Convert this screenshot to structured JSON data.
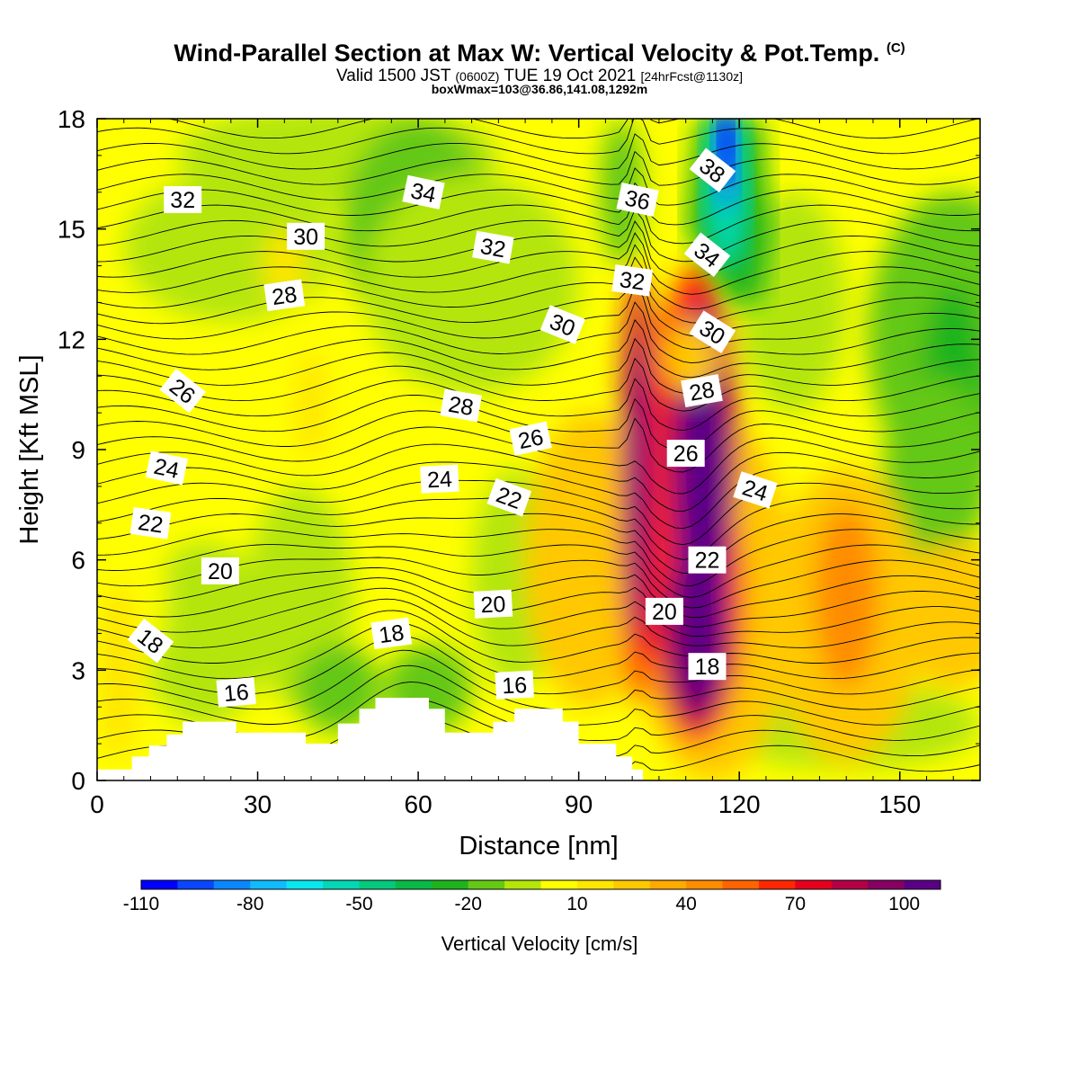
{
  "chart_data": {
    "type": "heatmap",
    "title": "Wind-Parallel Section at Max W: Vertical Velocity & Pot.Temp.",
    "title_mark": "(C)",
    "subtitle_parts": {
      "valid": "Valid 1500 JST",
      "utc": "(0600Z)",
      "date": "TUE 19 Oct 2021",
      "forecast": "[24hrFcst@1130z]"
    },
    "subtitle2": "boxWmax=103@36.86,141.08,1292m",
    "xlabel": "Distance [nm]",
    "ylabel": "Height [Kft MSL]",
    "xlim": [
      0,
      165
    ],
    "ylim": [
      0,
      18
    ],
    "xticks": [
      0,
      30,
      60,
      90,
      120,
      150
    ],
    "yticks": [
      0,
      3,
      6,
      9,
      12,
      15,
      18
    ],
    "colorbar": {
      "label": "Vertical Velocity [cm/s]",
      "tick_labels": [
        -110,
        -80,
        -50,
        -20,
        10,
        40,
        70,
        100
      ],
      "levels_from": -110,
      "levels_step": 10,
      "colors": [
        "#0000ff",
        "#0a46ff",
        "#0a87ff",
        "#10bcff",
        "#0ae6f0",
        "#05d7b4",
        "#05c87d",
        "#0ab946",
        "#1eb41e",
        "#64c814",
        "#b4e60a",
        "#ffff00",
        "#ffe600",
        "#ffc800",
        "#ffaa00",
        "#ff8c00",
        "#ff6400",
        "#ff2800",
        "#e6001e",
        "#b40046",
        "#870064",
        "#5a0087"
      ]
    },
    "theta_contours": {
      "levels": [
        16,
        18,
        20,
        22,
        24,
        26,
        28,
        30,
        32,
        34,
        36,
        38
      ],
      "labels": [
        {
          "text": "32",
          "x": 16,
          "y": 15.8,
          "angle": 0
        },
        {
          "text": "30",
          "x": 39,
          "y": 14.8,
          "angle": 0
        },
        {
          "text": "28",
          "x": 35,
          "y": 13.2,
          "angle": -8
        },
        {
          "text": "26",
          "x": 16,
          "y": 10.6,
          "angle": 38
        },
        {
          "text": "24",
          "x": 13,
          "y": 8.5,
          "angle": 12
        },
        {
          "text": "22",
          "x": 10,
          "y": 7.0,
          "angle": 8
        },
        {
          "text": "20",
          "x": 23,
          "y": 5.7,
          "angle": 0
        },
        {
          "text": "18",
          "x": 10,
          "y": 3.8,
          "angle": 38
        },
        {
          "text": "16",
          "x": 26,
          "y": 2.4,
          "angle": -5
        },
        {
          "text": "34",
          "x": 61,
          "y": 16.0,
          "angle": 12
        },
        {
          "text": "32",
          "x": 74,
          "y": 14.5,
          "angle": 10
        },
        {
          "text": "30",
          "x": 87,
          "y": 12.4,
          "angle": 22
        },
        {
          "text": "28",
          "x": 68,
          "y": 10.2,
          "angle": 10
        },
        {
          "text": "26",
          "x": 81,
          "y": 9.3,
          "angle": -12
        },
        {
          "text": "24",
          "x": 64,
          "y": 8.2,
          "angle": -3
        },
        {
          "text": "22",
          "x": 77,
          "y": 7.7,
          "angle": 20
        },
        {
          "text": "20",
          "x": 74,
          "y": 4.8,
          "angle": -3
        },
        {
          "text": "18",
          "x": 55,
          "y": 4.0,
          "angle": -8
        },
        {
          "text": "16",
          "x": 78,
          "y": 2.6,
          "angle": -3
        },
        {
          "text": "36",
          "x": 101,
          "y": 15.8,
          "angle": 12
        },
        {
          "text": "32",
          "x": 100,
          "y": 13.6,
          "angle": 8
        },
        {
          "text": "28",
          "x": 113,
          "y": 10.6,
          "angle": -10
        },
        {
          "text": "26",
          "x": 110,
          "y": 8.9,
          "angle": 0
        },
        {
          "text": "24",
          "x": 123,
          "y": 7.9,
          "angle": 18
        },
        {
          "text": "22",
          "x": 114,
          "y": 6.0,
          "angle": 0
        },
        {
          "text": "20",
          "x": 106,
          "y": 4.6,
          "angle": 0
        },
        {
          "text": "18",
          "x": 114,
          "y": 3.1,
          "angle": 0
        },
        {
          "text": "38",
          "x": 115,
          "y": 16.6,
          "angle": 38
        },
        {
          "text": "34",
          "x": 114,
          "y": 14.3,
          "angle": 38
        },
        {
          "text": "30",
          "x": 115,
          "y": 12.2,
          "angle": 32
        }
      ]
    },
    "terrain_profile": [
      [
        0,
        0.3
      ],
      [
        6.5,
        0.3
      ],
      [
        6.5,
        0.65
      ],
      [
        9.7,
        0.65
      ],
      [
        9.7,
        0.95
      ],
      [
        13,
        0.95
      ],
      [
        13,
        1.25
      ],
      [
        16,
        1.25
      ],
      [
        16,
        1.6
      ],
      [
        26,
        1.6
      ],
      [
        26,
        1.3
      ],
      [
        39,
        1.3
      ],
      [
        39,
        1.0
      ],
      [
        45,
        1.0
      ],
      [
        45,
        1.55
      ],
      [
        49,
        1.55
      ],
      [
        49,
        1.95
      ],
      [
        52,
        1.95
      ],
      [
        52,
        2.25
      ],
      [
        62,
        2.25
      ],
      [
        62,
        1.95
      ],
      [
        65,
        1.95
      ],
      [
        65,
        1.3
      ],
      [
        74,
        1.3
      ],
      [
        74,
        1.6
      ],
      [
        78,
        1.6
      ],
      [
        78,
        1.95
      ],
      [
        87,
        1.95
      ],
      [
        87,
        1.6
      ],
      [
        90,
        1.6
      ],
      [
        90,
        1.0
      ],
      [
        97,
        1.0
      ],
      [
        97,
        0.65
      ],
      [
        100,
        0.65
      ],
      [
        100,
        0.3
      ],
      [
        102,
        0.3
      ],
      [
        102,
        0
      ]
    ]
  }
}
